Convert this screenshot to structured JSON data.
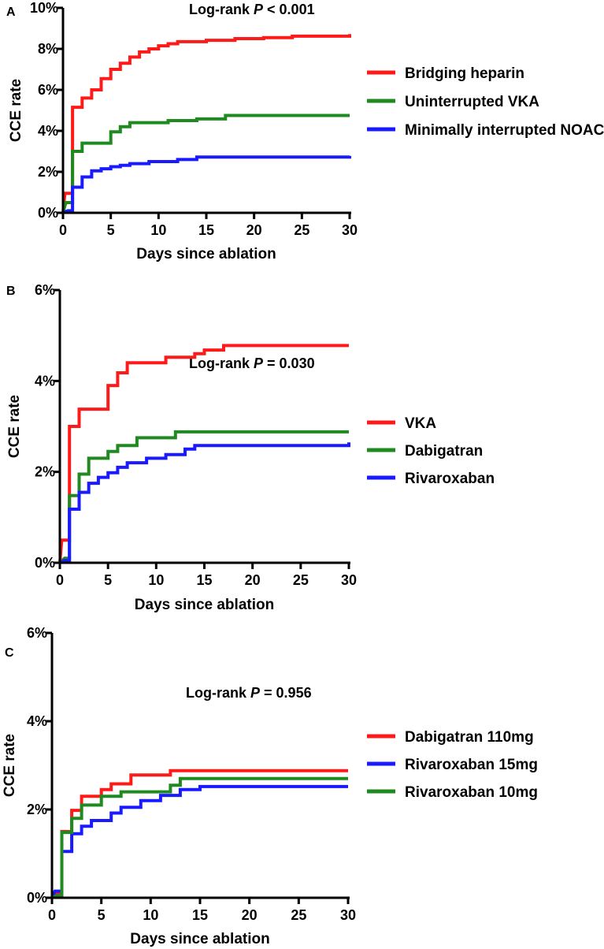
{
  "chart_data": [
    {
      "panel": "A",
      "type": "line",
      "step": true,
      "title_prefix": "Log-rank ",
      "title_p": "P",
      "title_suffix": " < 0.001",
      "xlabel": "Days since ablation",
      "ylabel": "CCE rate",
      "xlim": [
        0,
        30
      ],
      "ylim": [
        0,
        10
      ],
      "xticks": [
        0,
        5,
        10,
        15,
        20,
        25,
        30
      ],
      "yticks": [
        0,
        2,
        4,
        6,
        8,
        10
      ],
      "ytick_labels": [
        "0%",
        "2%",
        "4%",
        "6%",
        "8%",
        "10%"
      ],
      "legend_position": "right",
      "series": [
        {
          "name": "Bridging heparin",
          "color": "#ff1a1a",
          "points": [
            [
              0,
              0
            ],
            [
              0.2,
              0.95
            ],
            [
              1,
              0.95
            ],
            [
              1,
              5.15
            ],
            [
              2,
              5.15
            ],
            [
              2,
              5.6
            ],
            [
              3,
              5.6
            ],
            [
              3,
              6.0
            ],
            [
              4,
              6.0
            ],
            [
              4,
              6.55
            ],
            [
              5,
              6.55
            ],
            [
              5,
              7.0
            ],
            [
              6,
              7.0
            ],
            [
              6,
              7.3
            ],
            [
              7,
              7.3
            ],
            [
              7,
              7.6
            ],
            [
              8,
              7.6
            ],
            [
              8,
              7.85
            ],
            [
              9,
              7.85
            ],
            [
              9,
              8.0
            ],
            [
              10,
              8.0
            ],
            [
              10,
              8.15
            ],
            [
              11,
              8.15
            ],
            [
              11,
              8.25
            ],
            [
              12,
              8.25
            ],
            [
              12,
              8.35
            ],
            [
              15,
              8.35
            ],
            [
              15,
              8.42
            ],
            [
              18,
              8.42
            ],
            [
              18,
              8.5
            ],
            [
              21,
              8.5
            ],
            [
              21,
              8.55
            ],
            [
              24,
              8.55
            ],
            [
              24,
              8.62
            ],
            [
              30,
              8.62
            ],
            [
              30,
              8.72
            ]
          ]
        },
        {
          "name": "Uninterrupted VKA",
          "color": "#1f8a1f",
          "points": [
            [
              0,
              0
            ],
            [
              0.3,
              0.5
            ],
            [
              1,
              0.5
            ],
            [
              1,
              3.0
            ],
            [
              2,
              3.0
            ],
            [
              2,
              3.4
            ],
            [
              5,
              3.4
            ],
            [
              5,
              3.95
            ],
            [
              6,
              3.95
            ],
            [
              6,
              4.2
            ],
            [
              7,
              4.2
            ],
            [
              7,
              4.4
            ],
            [
              11,
              4.4
            ],
            [
              11,
              4.5
            ],
            [
              14,
              4.5
            ],
            [
              14,
              4.58
            ],
            [
              17,
              4.58
            ],
            [
              17,
              4.75
            ],
            [
              30,
              4.75
            ]
          ]
        },
        {
          "name": "Minimally interrupted NOAC",
          "color": "#1a1aff",
          "points": [
            [
              0,
              0
            ],
            [
              0.5,
              0.1
            ],
            [
              1,
              0.1
            ],
            [
              1,
              1.25
            ],
            [
              2,
              1.25
            ],
            [
              2,
              1.75
            ],
            [
              3,
              1.75
            ],
            [
              3,
              2.05
            ],
            [
              4,
              2.05
            ],
            [
              4,
              2.15
            ],
            [
              5,
              2.15
            ],
            [
              5,
              2.25
            ],
            [
              6,
              2.25
            ],
            [
              6,
              2.32
            ],
            [
              7,
              2.32
            ],
            [
              7,
              2.4
            ],
            [
              9,
              2.4
            ],
            [
              9,
              2.5
            ],
            [
              12,
              2.5
            ],
            [
              12,
              2.6
            ],
            [
              14,
              2.6
            ],
            [
              14,
              2.72
            ],
            [
              30,
              2.72
            ],
            [
              30,
              2.78
            ]
          ]
        }
      ]
    },
    {
      "panel": "B",
      "type": "line",
      "step": true,
      "title_prefix": "Log-rank ",
      "title_p": "P",
      "title_suffix": " = 0.030",
      "xlabel": "Days since ablation",
      "ylabel": "CCE rate",
      "xlim": [
        0,
        30
      ],
      "ylim": [
        0,
        6
      ],
      "xticks": [
        0,
        5,
        10,
        15,
        20,
        25,
        30
      ],
      "yticks": [
        0,
        2,
        4,
        6
      ],
      "ytick_labels": [
        "0%",
        "2%",
        "4%",
        "6%"
      ],
      "legend_position": "right",
      "series": [
        {
          "name": "VKA",
          "color": "#ff1a1a",
          "points": [
            [
              0,
              0
            ],
            [
              0.2,
              0.5
            ],
            [
              1,
              0.5
            ],
            [
              1,
              3.0
            ],
            [
              2,
              3.0
            ],
            [
              2,
              3.38
            ],
            [
              5,
              3.38
            ],
            [
              5,
              3.9
            ],
            [
              6,
              3.9
            ],
            [
              6,
              4.18
            ],
            [
              7,
              4.18
            ],
            [
              7,
              4.4
            ],
            [
              11,
              4.4
            ],
            [
              11,
              4.52
            ],
            [
              14,
              4.52
            ],
            [
              14,
              4.6
            ],
            [
              15,
              4.6
            ],
            [
              15,
              4.68
            ],
            [
              17,
              4.68
            ],
            [
              17,
              4.78
            ],
            [
              30,
              4.78
            ]
          ]
        },
        {
          "name": "Dabigatran",
          "color": "#1f8a1f",
          "points": [
            [
              0,
              0
            ],
            [
              0.5,
              0.1
            ],
            [
              1,
              0.1
            ],
            [
              1,
              1.48
            ],
            [
              2,
              1.48
            ],
            [
              2,
              1.95
            ],
            [
              3,
              1.95
            ],
            [
              3,
              2.3
            ],
            [
              5,
              2.3
            ],
            [
              5,
              2.45
            ],
            [
              6,
              2.45
            ],
            [
              6,
              2.58
            ],
            [
              8,
              2.58
            ],
            [
              8,
              2.75
            ],
            [
              12,
              2.75
            ],
            [
              12,
              2.88
            ],
            [
              30,
              2.88
            ]
          ]
        },
        {
          "name": "Rivaroxaban",
          "color": "#1a1aff",
          "points": [
            [
              0,
              0
            ],
            [
              0.5,
              0.05
            ],
            [
              1,
              0.05
            ],
            [
              1,
              1.18
            ],
            [
              2,
              1.18
            ],
            [
              2,
              1.55
            ],
            [
              3,
              1.55
            ],
            [
              3,
              1.75
            ],
            [
              4,
              1.75
            ],
            [
              4,
              1.88
            ],
            [
              5,
              1.88
            ],
            [
              5,
              1.98
            ],
            [
              6,
              1.98
            ],
            [
              6,
              2.1
            ],
            [
              7,
              2.1
            ],
            [
              7,
              2.2
            ],
            [
              9,
              2.2
            ],
            [
              9,
              2.3
            ],
            [
              11,
              2.3
            ],
            [
              11,
              2.38
            ],
            [
              13,
              2.38
            ],
            [
              13,
              2.5
            ],
            [
              14,
              2.5
            ],
            [
              14,
              2.58
            ],
            [
              30,
              2.58
            ],
            [
              30,
              2.65
            ]
          ]
        }
      ]
    },
    {
      "panel": "C",
      "type": "line",
      "step": true,
      "title_prefix": "Log-rank ",
      "title_p": "P",
      "title_suffix": " = 0.956",
      "xlabel": "Days since ablation",
      "ylabel": "CCE rate",
      "xlim": [
        0,
        30
      ],
      "ylim": [
        0,
        6
      ],
      "xticks": [
        0,
        5,
        10,
        15,
        20,
        25,
        30
      ],
      "yticks": [
        0,
        2,
        4,
        6
      ],
      "ytick_labels": [
        "0%",
        "2%",
        "4%",
        "6%"
      ],
      "legend_position": "right",
      "series": [
        {
          "name": "Dabigatran  110mg",
          "color": "#ff1a1a",
          "points": [
            [
              0,
              0
            ],
            [
              0.5,
              0.1
            ],
            [
              1,
              0.1
            ],
            [
              1,
              1.5
            ],
            [
              2,
              1.5
            ],
            [
              2,
              1.98
            ],
            [
              3,
              1.98
            ],
            [
              3,
              2.3
            ],
            [
              5,
              2.3
            ],
            [
              5,
              2.45
            ],
            [
              6,
              2.45
            ],
            [
              6,
              2.58
            ],
            [
              8,
              2.58
            ],
            [
              8,
              2.78
            ],
            [
              12,
              2.78
            ],
            [
              12,
              2.88
            ],
            [
              30,
              2.88
            ]
          ]
        },
        {
          "name": "Rivaroxaban 15mg",
          "color": "#1a1aff",
          "points": [
            [
              0,
              0
            ],
            [
              0.3,
              0.15
            ],
            [
              1,
              0.15
            ],
            [
              1,
              1.05
            ],
            [
              2,
              1.05
            ],
            [
              2,
              1.45
            ],
            [
              3,
              1.45
            ],
            [
              3,
              1.62
            ],
            [
              4,
              1.62
            ],
            [
              4,
              1.75
            ],
            [
              6,
              1.75
            ],
            [
              6,
              1.92
            ],
            [
              7,
              1.92
            ],
            [
              7,
              2.05
            ],
            [
              9,
              2.05
            ],
            [
              9,
              2.2
            ],
            [
              11,
              2.2
            ],
            [
              11,
              2.32
            ],
            [
              13,
              2.32
            ],
            [
              13,
              2.45
            ],
            [
              15,
              2.45
            ],
            [
              15,
              2.52
            ],
            [
              30,
              2.52
            ]
          ]
        },
        {
          "name": "Rivaroxaban 10mg",
          "color": "#1f8a1f",
          "points": [
            [
              0,
              0
            ],
            [
              0.5,
              0.05
            ],
            [
              1,
              0.05
            ],
            [
              1,
              1.48
            ],
            [
              2,
              1.48
            ],
            [
              2,
              1.8
            ],
            [
              3,
              1.8
            ],
            [
              3,
              2.1
            ],
            [
              5,
              2.1
            ],
            [
              5,
              2.3
            ],
            [
              7,
              2.3
            ],
            [
              7,
              2.4
            ],
            [
              12,
              2.4
            ],
            [
              12,
              2.55
            ],
            [
              13,
              2.55
            ],
            [
              13,
              2.7
            ],
            [
              30,
              2.7
            ]
          ]
        }
      ]
    }
  ]
}
